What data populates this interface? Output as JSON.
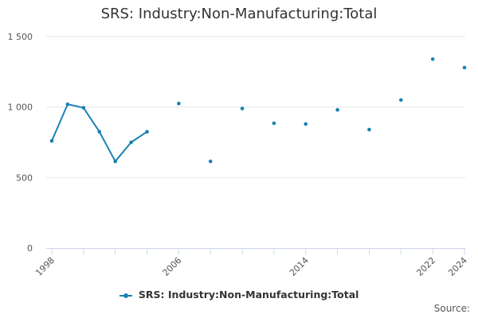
{
  "chart_data": {
    "type": "line",
    "title": "SRS: Industry:Non-Manufacturing:Total",
    "xlabel": "",
    "ylabel": "",
    "xlim": [
      1998,
      2024
    ],
    "ylim": [
      0,
      1500
    ],
    "x_ticks": [
      1998,
      2006,
      2014,
      2022,
      2024
    ],
    "y_ticks": [
      0,
      500,
      1000,
      1500
    ],
    "y_tick_labels": [
      "0",
      "500",
      "1 000",
      "1 500"
    ],
    "grid": true,
    "legend_position": "bottom",
    "series": [
      {
        "name": "SRS: Industry:Non-Manufacturing:Total",
        "color": "#1a81b4",
        "x": [
          1998,
          1999,
          2000,
          2001,
          2002,
          2003,
          2004,
          2006,
          2008,
          2010,
          2012,
          2014,
          2016,
          2018,
          2020,
          2022,
          2024
        ],
        "values": [
          760,
          1020,
          995,
          825,
          615,
          750,
          825,
          1025,
          615,
          990,
          885,
          880,
          980,
          840,
          1050,
          1340,
          1280
        ]
      }
    ]
  },
  "legend": {
    "label": "SRS: Industry:Non-Manufacturing:Total"
  },
  "footer": {
    "source_label": "Source:"
  }
}
